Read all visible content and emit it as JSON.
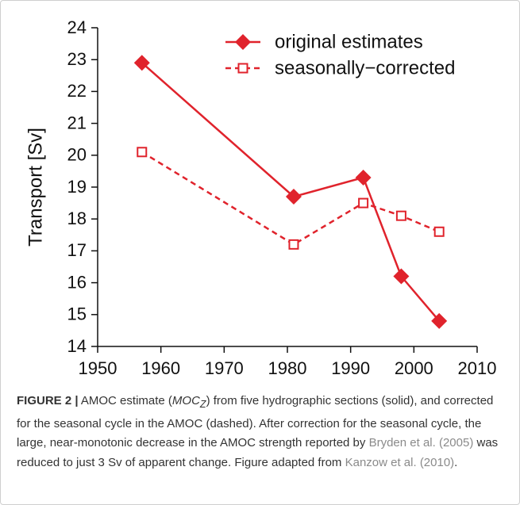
{
  "chart_data": {
    "type": "line",
    "y_label": "Transport [Sv]",
    "x": [
      1957,
      1981,
      1992,
      1998,
      2004
    ],
    "series": [
      {
        "name": "original estimates",
        "color": "#e0232c",
        "line_style": "solid",
        "marker": "diamond",
        "values": [
          22.9,
          18.7,
          19.3,
          16.2,
          14.8
        ]
      },
      {
        "name": "seasonally−corrected",
        "color": "#e0232c",
        "line_style": "dashed",
        "marker": "square-open",
        "values": [
          20.1,
          17.2,
          18.5,
          18.1,
          17.6
        ]
      }
    ],
    "xlim": [
      1950,
      2010
    ],
    "xticks": [
      1950,
      1960,
      1970,
      1980,
      1990,
      2000,
      2010
    ],
    "ylim": [
      14,
      24
    ],
    "yticks": [
      14,
      15,
      16,
      17,
      18,
      19,
      20,
      21,
      22,
      23,
      24
    ],
    "grid": false,
    "legend": "top-right"
  },
  "caption": {
    "label": "FIGURE 2 |",
    "parts": [
      "AMOC estimate (",
      "MOC",
      "Z",
      ") from five hydrographic sections (solid), and corrected for the seasonal cycle in the AMOC (dashed). After correction for the seasonal cycle, the large, near-monotonic decrease in the AMOC strength reported by ",
      "Bryden et al. (2005)",
      " was reduced to just 3 Sv of apparent change. Figure adapted from ",
      "Kanzow et al. (2010)",
      "."
    ]
  }
}
